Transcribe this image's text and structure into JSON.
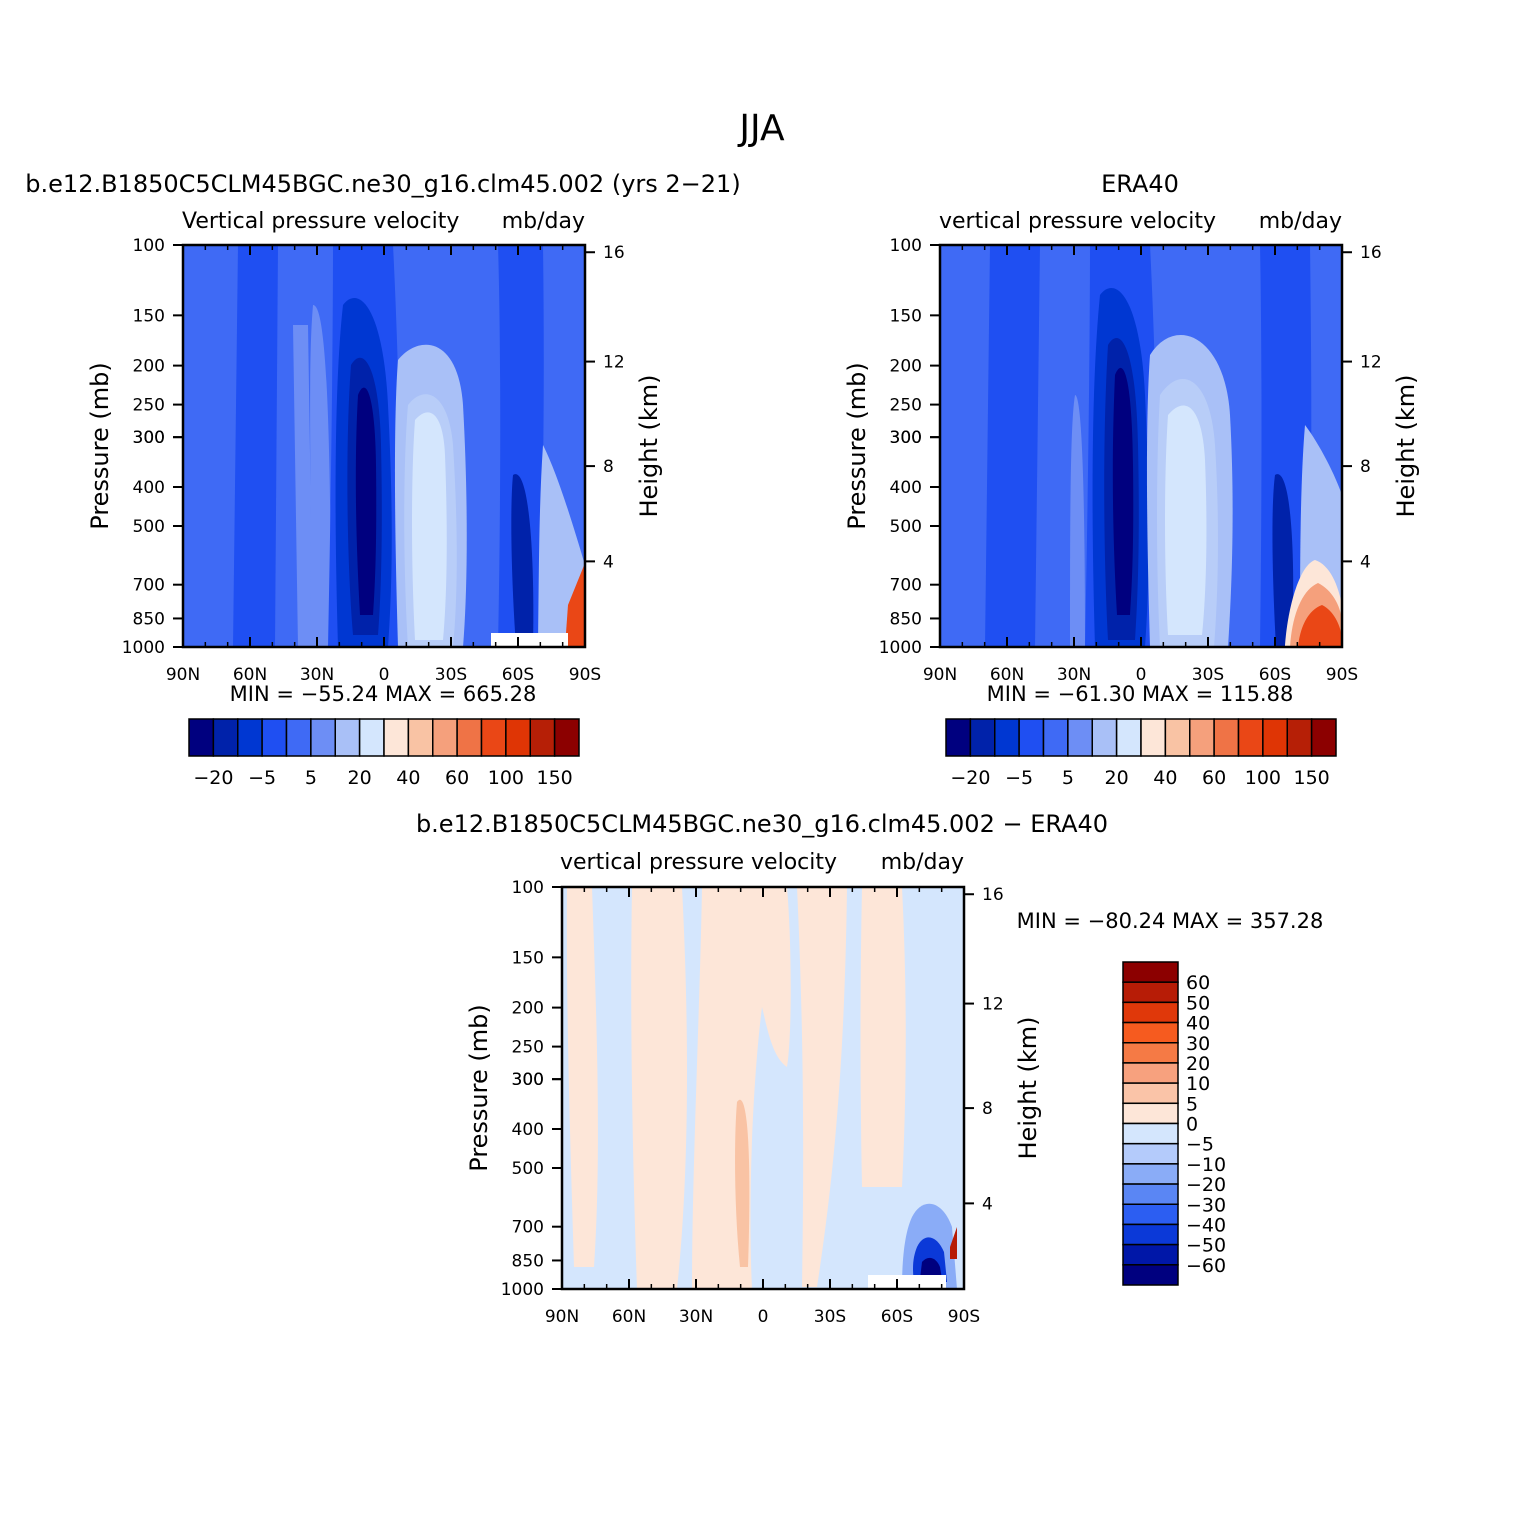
{
  "figure": {
    "title": "JJA"
  },
  "colors": {
    "model_obs_scale": [
      "#00007f",
      "#0022aa",
      "#0037d2",
      "#1f4ff2",
      "#3f6af5",
      "#6d8ef5",
      "#a9c0f7",
      "#d4e6fd",
      "#fde6d8",
      "#f9c3a4",
      "#f5a07c",
      "#ef7346",
      "#ea4716",
      "#df3505",
      "#b61f06",
      "#8c0000"
    ],
    "diff_scale": [
      "#8c0000",
      "#b71c06",
      "#e0380a",
      "#f65b1f",
      "#f57a45",
      "#f7a17e",
      "#fac4a8",
      "#fde6d8",
      "#d4e6fd",
      "#b4cbfb",
      "#8aacf7",
      "#5a86f4",
      "#2c5ef2",
      "#0b39d8",
      "#0017a8",
      "#00007f"
    ]
  },
  "chart_data": [
    {
      "id": "model",
      "type": "heatmap",
      "title": "b.e12.B1850C5CLM45BGC.ne30_g16.clm45.002 (yrs 2−21)",
      "subtitle_left": "Vertical pressure velocity",
      "subtitle_right": "mb/day",
      "ylabel": "Pressure (mb)",
      "y2label": "Height (km)",
      "xticks": [
        "90N",
        "60N",
        "30N",
        "0",
        "30S",
        "60S",
        "90S"
      ],
      "yticks": [
        "100",
        "150",
        "200",
        "250",
        "300",
        "300",
        "400",
        "500",
        "700",
        "850",
        "1000"
      ],
      "y2ticks": [
        "16",
        "12",
        "8",
        "4"
      ],
      "stats": "MIN = −55.24   MAX = 665.28",
      "min": -55.24,
      "max": 665.28,
      "colorbar_labels": [
        "−20",
        "−5",
        "5",
        "20",
        "40",
        "60",
        "100",
        "150"
      ]
    },
    {
      "id": "obs",
      "type": "heatmap",
      "title": "ERA40",
      "subtitle_left": "vertical pressure velocity",
      "subtitle_right": "mb/day",
      "ylabel": "Pressure (mb)",
      "y2label": "Height (km)",
      "xticks": [
        "90N",
        "60N",
        "30N",
        "0",
        "30S",
        "60S",
        "90S"
      ],
      "yticks": [
        "100",
        "150",
        "200",
        "250",
        "300",
        "300",
        "400",
        "500",
        "700",
        "850",
        "1000"
      ],
      "y2ticks": [
        "16",
        "12",
        "8",
        "4"
      ],
      "stats": "MIN = −61.30   MAX = 115.88",
      "min": -61.3,
      "max": 115.88,
      "colorbar_labels": [
        "−20",
        "−5",
        "5",
        "20",
        "40",
        "60",
        "100",
        "150"
      ]
    },
    {
      "id": "diff",
      "type": "heatmap",
      "title": "b.e12.B1850C5CLM45BGC.ne30_g16.clm45.002 − ERA40",
      "subtitle_left": "vertical pressure velocity",
      "subtitle_right": "mb/day",
      "ylabel": "Pressure (mb)",
      "y2label": "Height (km)",
      "xticks": [
        "90N",
        "60N",
        "30N",
        "0",
        "30S",
        "60S",
        "90S"
      ],
      "yticks": [
        "100",
        "150",
        "200",
        "250",
        "300",
        "300",
        "400",
        "500",
        "700",
        "850",
        "1000"
      ],
      "y2ticks": [
        "16",
        "12",
        "8",
        "4"
      ],
      "stats": "MIN = −80.24   MAX = 357.28",
      "min": -80.24,
      "max": 357.28,
      "colorbar_labels": [
        "60",
        "50",
        "40",
        "30",
        "20",
        "10",
        "5",
        "0",
        "−5",
        "−10",
        "−20",
        "−30",
        "−40",
        "−50",
        "−60"
      ]
    }
  ]
}
